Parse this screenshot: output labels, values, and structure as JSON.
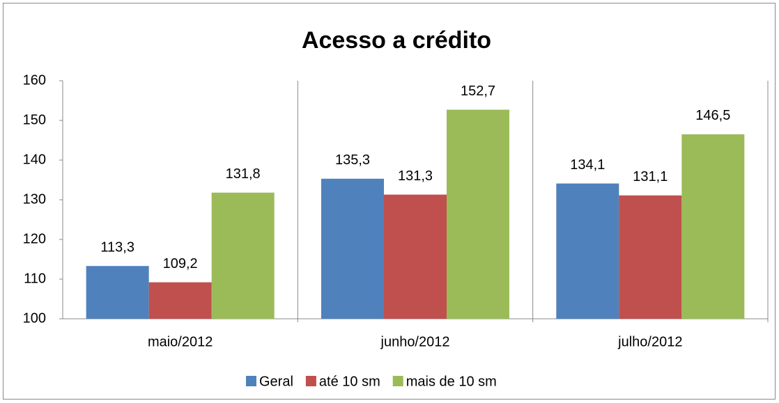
{
  "chart_data": {
    "type": "bar",
    "title": "Acesso a crédito",
    "categories": [
      "maio/2012",
      "junho/2012",
      "julho/2012"
    ],
    "series": [
      {
        "name": "Geral",
        "color": "#4f81bd",
        "values": [
          113.3,
          135.3,
          134.1
        ],
        "value_labels": [
          "113,3",
          "135,3",
          "134,1"
        ]
      },
      {
        "name": "até 10 sm",
        "color": "#c0504d",
        "values": [
          109.2,
          131.3,
          131.1
        ],
        "value_labels": [
          "109,2",
          "131,3",
          "131,1"
        ]
      },
      {
        "name": "mais de 10 sm",
        "color": "#9bbb59",
        "values": [
          131.8,
          152.7,
          146.5
        ],
        "value_labels": [
          "131,8",
          "152,7",
          "146,5"
        ]
      }
    ],
    "ylim": [
      100,
      160
    ],
    "yticks": [
      100,
      110,
      120,
      130,
      140,
      150,
      160
    ],
    "grid": false,
    "legend": "bottom"
  }
}
